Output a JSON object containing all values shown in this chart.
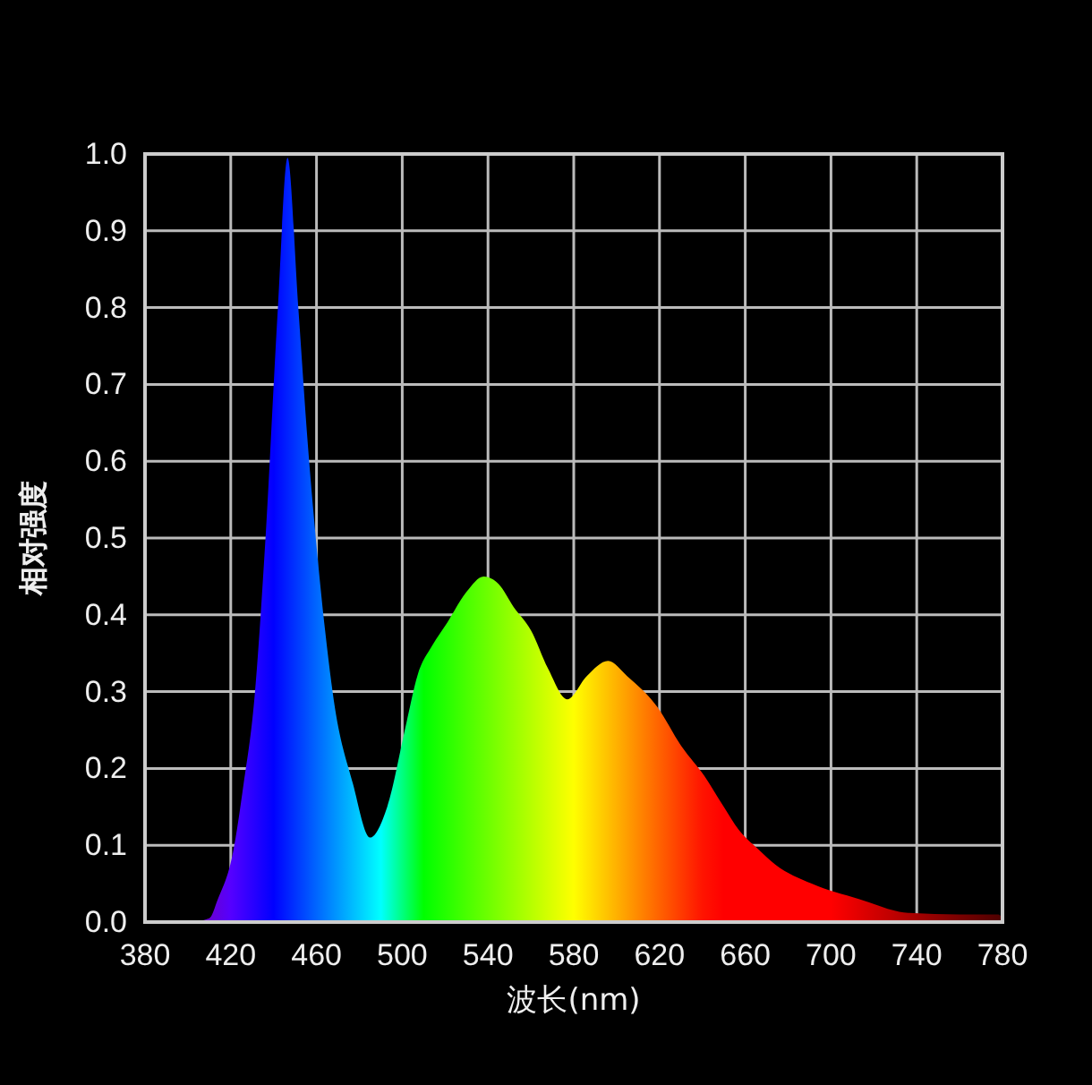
{
  "chart_data": {
    "type": "area",
    "xlabel": "波长(nm)",
    "ylabel": "相对强度",
    "xlim": [
      380,
      780
    ],
    "xticks": [
      380,
      420,
      460,
      500,
      540,
      580,
      620,
      660,
      700,
      740,
      780
    ],
    "ylim": [
      0,
      1
    ],
    "yticks": [
      {
        "value": 0,
        "label": "0.0"
      },
      0.1,
      0.2,
      0.3,
      0.4,
      0.5,
      0.6,
      0.7,
      0.8,
      0.9,
      {
        "value": 1,
        "label": "1.0"
      }
    ],
    "grid": true,
    "series": [
      {
        "x": [
          380,
          400,
          410,
          414,
          421,
          426,
          431,
          436,
          442,
          446.5,
          451.5,
          456,
          460,
          464,
          468,
          477,
          485,
          493,
          502,
          507,
          514,
          521,
          530,
          538,
          545,
          552,
          560,
          568,
          577,
          586,
          596,
          605,
          619,
          630,
          641,
          650,
          657,
          666,
          674,
          691,
          713,
          736,
          760,
          778,
          780
        ],
        "values": [
          0,
          0,
          0.005,
          0.03,
          0.09,
          0.18,
          0.29,
          0.49,
          0.8,
          0.995,
          0.8,
          0.62,
          0.49,
          0.38,
          0.29,
          0.18,
          0.11,
          0.15,
          0.26,
          0.32,
          0.36,
          0.39,
          0.43,
          0.45,
          0.44,
          0.41,
          0.38,
          0.33,
          0.29,
          0.32,
          0.34,
          0.32,
          0.28,
          0.23,
          0.19,
          0.15,
          0.12,
          0.095,
          0.075,
          0.05,
          0.03,
          0.012,
          0.01,
          0.01,
          0.005
        ]
      }
    ]
  }
}
